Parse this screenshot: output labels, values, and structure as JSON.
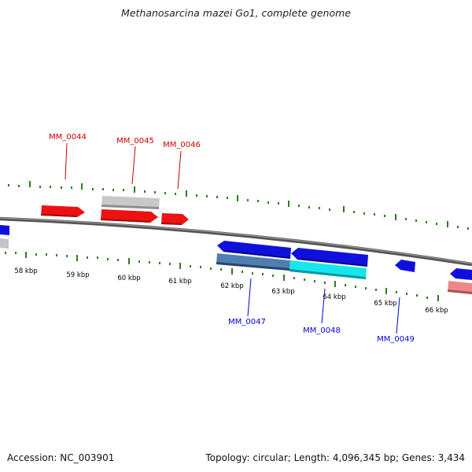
{
  "title": "Methanosarcina mazei Go1, complete genome",
  "footer": {
    "accession": "Accession: NC_003901",
    "summary": "Topology: circular; Length: 4,096,345 bp; Genes: 3,434"
  },
  "colors": {
    "background": "#ffffff",
    "backbone": "#6e6e6e",
    "tick": "#2e7d1e",
    "tick_label": "#000000",
    "forward_cds": "#ee1111",
    "reverse_cds": "#1010dd",
    "forward_gene": "#c4c4c4",
    "reverse_gene_steel": "#4f7fb0",
    "reverse_gene_cyan": "#16e6ec",
    "reverse_gene_pink": "#ee8888",
    "gene_label_forward": "#cc0000",
    "gene_label_reverse": "#0000cc"
  },
  "scale": {
    "unit": "kbp",
    "ticks": [
      {
        "label": "58 kbp",
        "kbp": 58
      },
      {
        "label": "59 kbp",
        "kbp": 59
      },
      {
        "label": "60 kbp",
        "kbp": 60
      },
      {
        "label": "61 kbp",
        "kbp": 61
      },
      {
        "label": "62 kbp",
        "kbp": 62
      },
      {
        "label": "63 kbp",
        "kbp": 63
      },
      {
        "label": "64 kbp",
        "kbp": 64
      },
      {
        "label": "65 kbp",
        "kbp": 65
      },
      {
        "label": "66 kbp",
        "kbp": 66
      }
    ]
  },
  "features": {
    "forward_labels": [
      "MM_0044",
      "MM_0045",
      "MM_0046"
    ],
    "reverse_labels": [
      "MM_0047",
      "MM_0048",
      "MM_0049"
    ]
  }
}
